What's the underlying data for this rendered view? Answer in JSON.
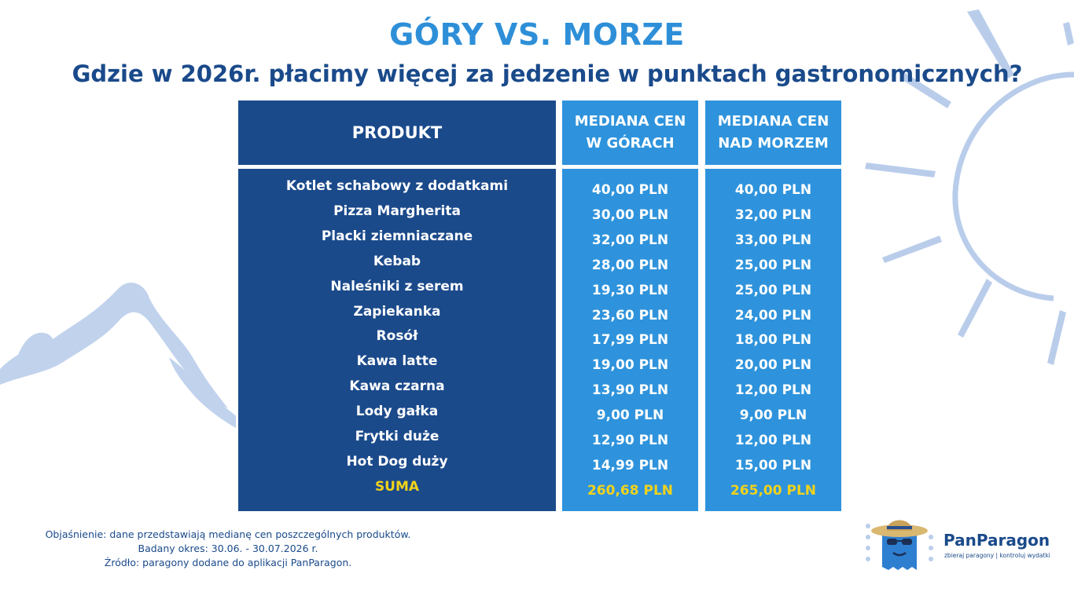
{
  "title": "GÓRY VS. MORZE",
  "subtitle": "Gdzie w 2026r. płacimy więcej za jedzenie w punktach gastronomicznych?",
  "table": {
    "headers": {
      "product": "PRODUKT",
      "mountains_line1": "MEDIANA CEN",
      "mountains_line2": "W GÓRACH",
      "sea_line1": "MEDIANA CEN",
      "sea_line2": "NAD MORZEM"
    },
    "rows": [
      {
        "product": "Kotlet schabowy z dodatkami",
        "mountains": "40,00 PLN",
        "sea": "40,00 PLN"
      },
      {
        "product": "Pizza Margherita",
        "mountains": "30,00 PLN",
        "sea": "32,00 PLN"
      },
      {
        "product": "Placki ziemniaczane",
        "mountains": "32,00 PLN",
        "sea": "33,00 PLN"
      },
      {
        "product": "Kebab",
        "mountains": "28,00 PLN",
        "sea": "25,00 PLN"
      },
      {
        "product": "Naleśniki z serem",
        "mountains": "19,30 PLN",
        "sea": "25,00 PLN"
      },
      {
        "product": "Zapiekanka",
        "mountains": "23,60 PLN",
        "sea": "24,00 PLN"
      },
      {
        "product": "Rosół",
        "mountains": "17,99 PLN",
        "sea": "18,00 PLN"
      },
      {
        "product": "Kawa latte",
        "mountains": "19,00 PLN",
        "sea": "20,00 PLN"
      },
      {
        "product": "Kawa czarna",
        "mountains": "13,90 PLN",
        "sea": "12,00 PLN"
      },
      {
        "product": "Lody gałka",
        "mountains": "9,00 PLN",
        "sea": "9,00 PLN"
      },
      {
        "product": "Frytki duże",
        "mountains": "12,90 PLN",
        "sea": "12,00 PLN"
      },
      {
        "product": "Hot Dog duży",
        "mountains": "14,99 PLN",
        "sea": "15,00 PLN"
      }
    ],
    "sum": {
      "product": "SUMA",
      "mountains": "260,68 PLN",
      "sea": "265,00 PLN"
    }
  },
  "notes": {
    "line1": "Objaśnienie: dane przedstawiają medianę cen poszczególnych produktów.",
    "line2": "Badany okres: 30.06. - 30.07.2026 r.",
    "line3": "Źródło: paragony dodane do aplikacji PanParagon."
  },
  "brand": {
    "name": "PanParagon",
    "tagline": "zbieraj paragony | kontroluj wydatki"
  },
  "chart_data": {
    "type": "table",
    "title": "GÓRY VS. MORZE",
    "subtitle": "Gdzie w 2026r. płacimy więcej za jedzenie w punktach gastronomicznych?",
    "columns": [
      "PRODUKT",
      "MEDIANA CEN W GÓRACH",
      "MEDIANA CEN NAD MORZEM"
    ],
    "categories": [
      "Kotlet schabowy z dodatkami",
      "Pizza Margherita",
      "Placki ziemniaczane",
      "Kebab",
      "Naleśniki z serem",
      "Zapiekanka",
      "Rosół",
      "Kawa latte",
      "Kawa czarna",
      "Lody gałka",
      "Frytki duże",
      "Hot Dog duży",
      "SUMA"
    ],
    "series": [
      {
        "name": "MEDIANA CEN W GÓRACH",
        "values": [
          40.0,
          30.0,
          32.0,
          28.0,
          19.3,
          23.6,
          17.99,
          19.0,
          13.9,
          9.0,
          12.9,
          14.99,
          260.68
        ]
      },
      {
        "name": "MEDIANA CEN NAD MORZEM",
        "values": [
          40.0,
          32.0,
          33.0,
          25.0,
          25.0,
          24.0,
          18.0,
          20.0,
          12.0,
          9.0,
          12.0,
          15.0,
          265.0
        ]
      }
    ],
    "unit": "PLN"
  },
  "colors": {
    "dark_blue": "#1b4a8b",
    "light_blue": "#2e93dc",
    "sum_yellow": "#f2d21b",
    "title_blue": "#2e8fd8",
    "decoration": "#b9cdeb"
  }
}
